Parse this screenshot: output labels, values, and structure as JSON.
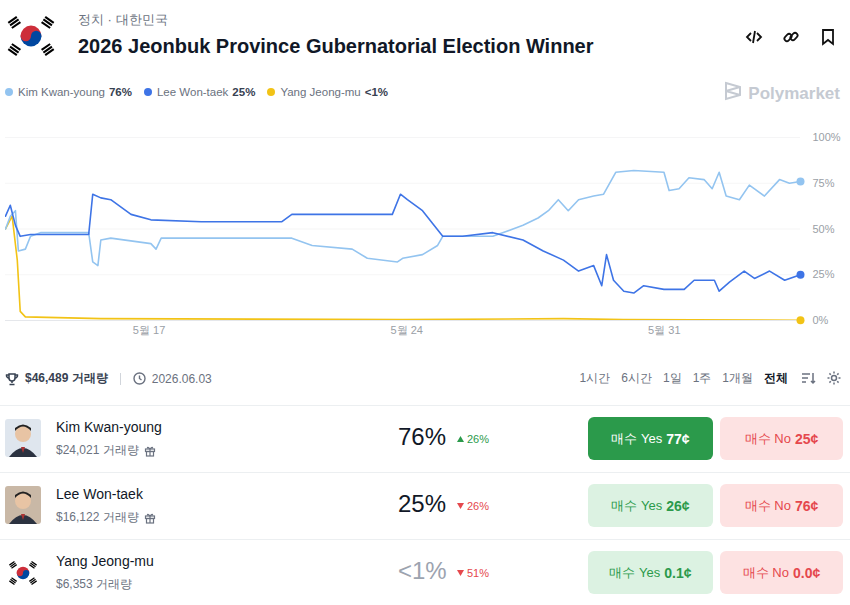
{
  "header": {
    "breadcrumb": "정치 · 대한민국",
    "title": "2026 Jeonbuk Province Gubernatorial Election Winner",
    "brand": "Polymarket"
  },
  "chart_data": {
    "type": "line",
    "legend": "top-left",
    "grid": true,
    "xlim": [
      13.1,
      34.7
    ],
    "xticks": [
      {
        "value": 17,
        "label": "5월 17"
      },
      {
        "value": 24,
        "label": "5월 24"
      },
      {
        "value": 31,
        "label": "5월 31"
      }
    ],
    "ylim": [
      0,
      100
    ],
    "yticks": [
      {
        "value": 0,
        "label": "0%"
      },
      {
        "value": 25,
        "label": "25%"
      },
      {
        "value": 50,
        "label": "50%"
      },
      {
        "value": 75,
        "label": "75%"
      },
      {
        "value": 100,
        "label": "100%"
      }
    ],
    "series": [
      {
        "name": "Kim Kwan-young",
        "legend_value": "76%",
        "color": "#93c4f0",
        "x": [
          13.1,
          13.23,
          13.37,
          13.45,
          13.64,
          13.78,
          14.05,
          14.6,
          15.36,
          15.47,
          15.61,
          15.69,
          15.96,
          17.05,
          17.19,
          17.33,
          18.42,
          20.88,
          21.43,
          22.52,
          22.93,
          23.75,
          23.89,
          24.43,
          24.84,
          24.98,
          25.52,
          26.34,
          27.16,
          27.57,
          27.85,
          28.12,
          28.39,
          28.67,
          29.08,
          29.35,
          29.57,
          29.68,
          30.17,
          30.99,
          31.13,
          31.4,
          31.67,
          32.08,
          32.3,
          32.49,
          32.68,
          33.04,
          33.31,
          33.72,
          34.13,
          34.4,
          34.7
        ],
        "values": [
          50,
          57,
          60,
          38,
          39,
          46,
          48,
          48,
          48,
          32,
          30,
          44,
          45,
          42,
          39,
          45,
          45,
          45,
          41,
          39,
          34,
          32,
          34,
          36,
          41,
          46,
          46,
          46,
          52,
          56,
          60,
          66,
          60,
          66,
          68,
          69,
          77,
          81,
          82,
          81,
          71,
          72,
          78,
          77,
          72,
          81,
          68,
          66,
          74,
          68,
          77,
          75,
          76
        ]
      },
      {
        "name": "Lee Won-taek",
        "legend_value": "25%",
        "color": "#3e74e6",
        "x": [
          13.1,
          13.23,
          13.37,
          13.5,
          13.78,
          15.36,
          15.47,
          15.69,
          15.96,
          16.51,
          17.05,
          18.42,
          20.61,
          20.88,
          21.97,
          23.61,
          23.83,
          24.02,
          24.43,
          24.98,
          25.52,
          26.34,
          27.16,
          27.71,
          28.26,
          28.67,
          29.08,
          29.3,
          29.43,
          29.62,
          29.9,
          30.17,
          30.44,
          30.99,
          31.54,
          31.81,
          32.36,
          32.49,
          32.77,
          33.17,
          33.45,
          33.86,
          34.27,
          34.7
        ],
        "values": [
          57,
          63,
          52,
          46,
          47,
          47,
          69,
          67,
          66,
          58,
          55,
          54,
          54,
          58,
          58,
          58,
          69,
          66,
          60,
          46,
          46,
          48,
          44,
          38,
          33,
          27,
          30,
          19,
          36,
          22,
          16,
          15,
          19,
          17,
          17,
          22,
          22,
          16,
          21,
          27,
          23,
          27,
          22,
          25
        ]
      },
      {
        "name": "Yang Jeong-mu",
        "legend_value": "<1%",
        "color": "#f2c316",
        "x": [
          13.1,
          13.28,
          13.42,
          13.5,
          13.64,
          15.69,
          23.89,
          28.26,
          29.9,
          34.7
        ],
        "values": [
          50,
          57,
          33,
          5,
          2,
          1,
          0.5,
          1,
          0.5,
          0.1
        ]
      }
    ]
  },
  "footer": {
    "volume": "$46,489 거래량",
    "date": "2026.06.03",
    "ranges": [
      "1시간",
      "6시간",
      "1일",
      "1주",
      "1개월",
      "전체"
    ],
    "active_range": "전체"
  },
  "table": {
    "rows": [
      {
        "name": "Kim Kwan-young",
        "volume": "$24,021 거래량",
        "percent": "76%",
        "change": "26%",
        "change_direction": "up",
        "yes_label": "매수 Yes",
        "yes_price": "77¢",
        "no_label": "매수 No",
        "no_price": "25¢"
      },
      {
        "name": "Lee Won-taek",
        "volume": "$16,122 거래량",
        "percent": "25%",
        "change": "26%",
        "change_direction": "down",
        "yes_label": "매수 Yes",
        "yes_price": "26¢",
        "no_label": "매수 No",
        "no_price": "76¢"
      },
      {
        "name": "Yang Jeong-mu",
        "volume": "$6,353 거래량",
        "percent": "<1%",
        "change": "51%",
        "change_direction": "down",
        "yes_label": "매수 Yes",
        "yes_price": "0.1¢",
        "no_label": "매수 No",
        "no_price": "0.0¢"
      }
    ]
  }
}
